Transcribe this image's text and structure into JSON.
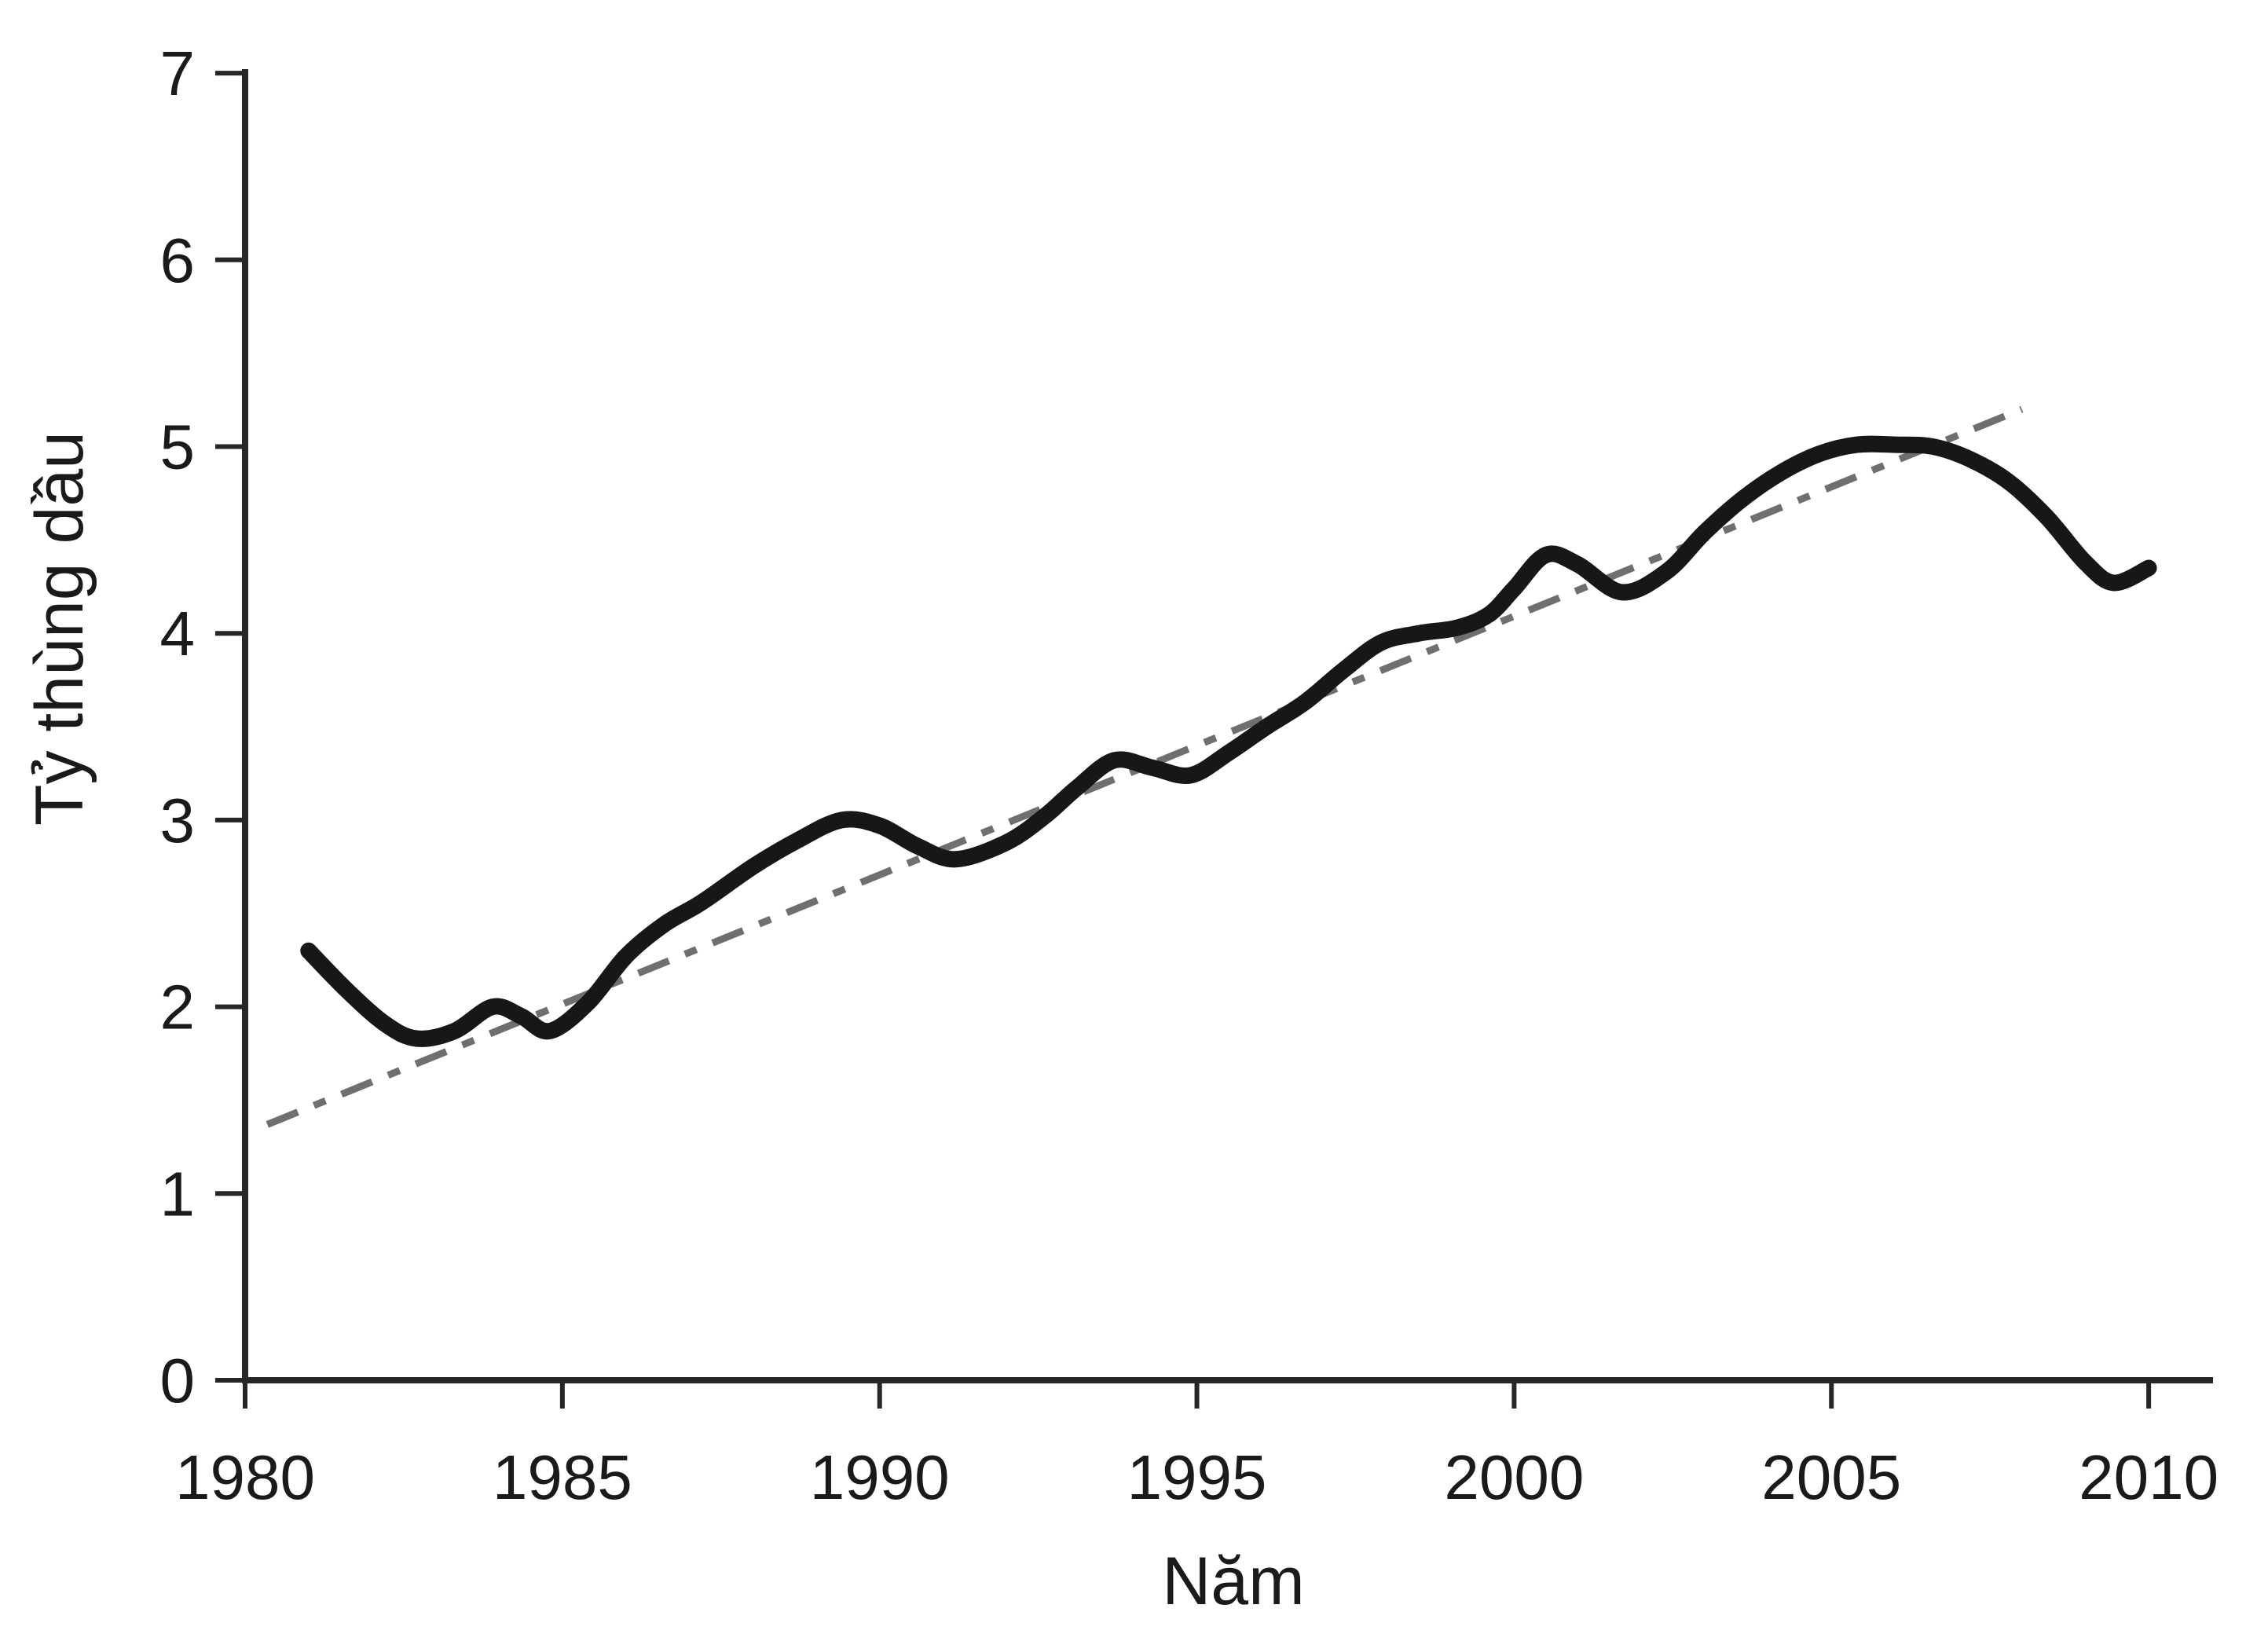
{
  "figure": {
    "background": "#ffffff",
    "axis_color": "#262626",
    "text_color": "#1a1a1a",
    "curve_color": "#171717",
    "trend_color": "#6f6f6f"
  },
  "chart_data": {
    "type": "line",
    "title": "",
    "xlabel": "Năm",
    "ylabel": "Tỷ thùng dầu",
    "xlim": [
      1980,
      2011
    ],
    "ylim": [
      0,
      7
    ],
    "grid": false,
    "legend": "none",
    "x_ticks": [
      1980,
      1985,
      1990,
      1995,
      2000,
      2005,
      2010
    ],
    "x_tick_labels": [
      "1980",
      "1985",
      "1990",
      "1995",
      "2000",
      "2005",
      "2010"
    ],
    "y_ticks": [
      0,
      1,
      2,
      3,
      4,
      5,
      6,
      7
    ],
    "y_tick_labels": [
      "0",
      "1",
      "2",
      "3",
      "4",
      "5",
      "6",
      "7"
    ],
    "series": [
      {
        "name": "oil-production-curve",
        "style": "solid-smooth",
        "x": [
          1981.0,
          1981.6,
          1982.2,
          1982.7,
          1983.3,
          1983.9,
          1984.35,
          1984.8,
          1985.4,
          1986.0,
          1986.6,
          1987.2,
          1988.0,
          1988.7,
          1989.4,
          1990.0,
          1990.6,
          1991.2,
          1992.0,
          1992.6,
          1993.1,
          1993.7,
          1994.3,
          1994.9,
          1995.5,
          1996.1,
          1996.7,
          1997.3,
          1997.9,
          1998.5,
          1999.1,
          1999.6,
          2000.0,
          2000.5,
          2001.0,
          2001.7,
          2002.4,
          2003.0,
          2003.6,
          2004.2,
          2004.8,
          2005.4,
          2006.0,
          2006.6,
          2007.2,
          2007.8,
          2008.4,
          2009.0,
          2009.45,
          2010.0
        ],
        "y": [
          2.3,
          2.09,
          1.91,
          1.83,
          1.87,
          2.0,
          1.95,
          1.87,
          2.02,
          2.27,
          2.44,
          2.56,
          2.75,
          2.89,
          3.0,
          2.97,
          2.86,
          2.79,
          2.88,
          3.02,
          3.17,
          3.32,
          3.28,
          3.24,
          3.36,
          3.5,
          3.63,
          3.8,
          3.95,
          4.0,
          4.03,
          4.1,
          4.24,
          4.42,
          4.37,
          4.22,
          4.33,
          4.54,
          4.72,
          4.86,
          4.96,
          5.01,
          5.01,
          5.0,
          4.93,
          4.81,
          4.62,
          4.38,
          4.27,
          4.35
        ]
      },
      {
        "name": "linear-trend-line",
        "style": "dashed",
        "x": [
          1980.35,
          2008.0
        ],
        "y": [
          1.37,
          5.2
        ]
      }
    ]
  }
}
